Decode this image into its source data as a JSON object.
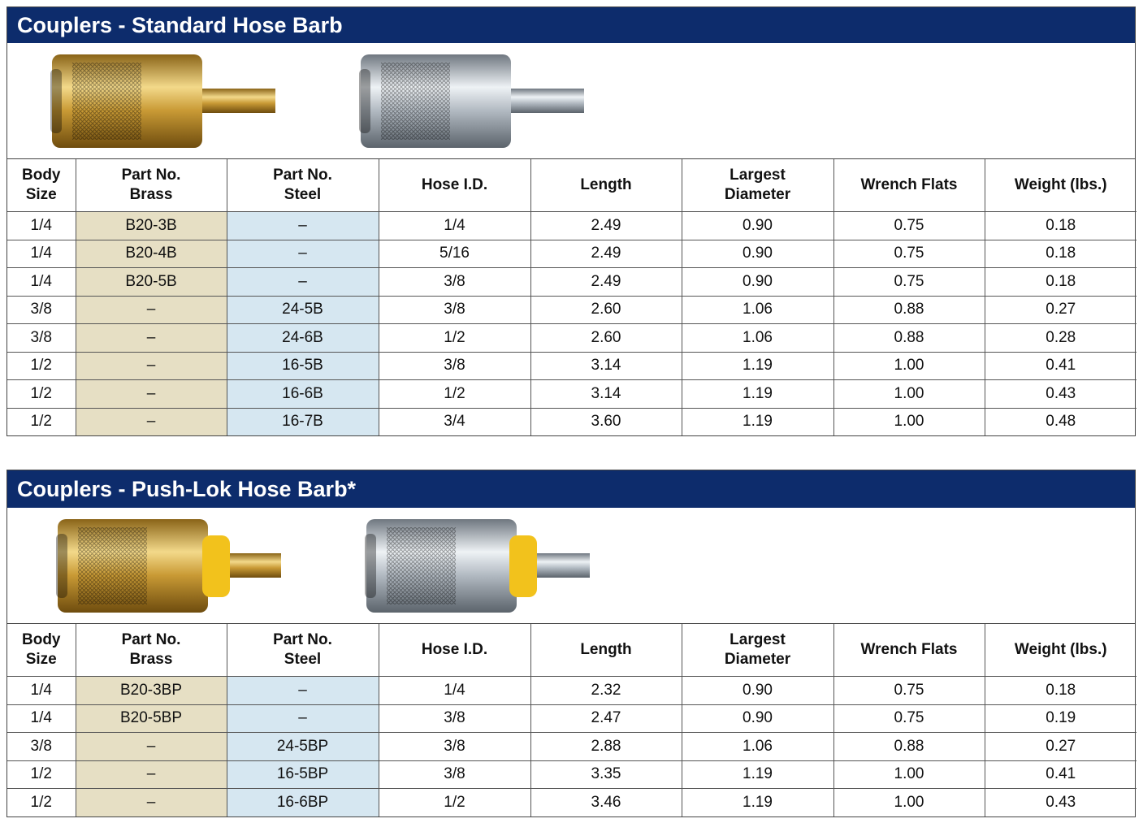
{
  "sections": [
    {
      "title": "Couplers - Standard Hose Barb",
      "table": {
        "headers": [
          [
            "Body",
            "Size"
          ],
          [
            "Part No.",
            "Brass"
          ],
          [
            "Part No.",
            "Steel"
          ],
          [
            "Hose I.D."
          ],
          [
            "Length"
          ],
          [
            "Largest",
            "Diameter"
          ],
          [
            "Wrench Flats"
          ],
          [
            "Weight (lbs.)"
          ]
        ],
        "rows": [
          [
            "1/4",
            "B20-3B",
            "–",
            "1/4",
            "2.49",
            "0.90",
            "0.75",
            "0.18"
          ],
          [
            "1/4",
            "B20-4B",
            "–",
            "5/16",
            "2.49",
            "0.90",
            "0.75",
            "0.18"
          ],
          [
            "1/4",
            "B20-5B",
            "–",
            "3/8",
            "2.49",
            "0.90",
            "0.75",
            "0.18"
          ],
          [
            "3/8",
            "–",
            "24-5B",
            "3/8",
            "2.60",
            "1.06",
            "0.88",
            "0.27"
          ],
          [
            "3/8",
            "–",
            "24-6B",
            "1/2",
            "2.60",
            "1.06",
            "0.88",
            "0.28"
          ],
          [
            "1/2",
            "–",
            "16-5B",
            "3/8",
            "3.14",
            "1.19",
            "1.00",
            "0.41"
          ],
          [
            "1/2",
            "–",
            "16-6B",
            "1/2",
            "3.14",
            "1.19",
            "1.00",
            "0.43"
          ],
          [
            "1/2",
            "–",
            "16-7B",
            "3/4",
            "3.60",
            "1.19",
            "1.00",
            "0.48"
          ]
        ]
      }
    },
    {
      "title": "Couplers - Push-Lok Hose Barb*",
      "table": {
        "headers": [
          [
            "Body",
            "Size"
          ],
          [
            "Part No.",
            "Brass"
          ],
          [
            "Part No.",
            "Steel"
          ],
          [
            "Hose I.D."
          ],
          [
            "Length"
          ],
          [
            "Largest",
            "Diameter"
          ],
          [
            "Wrench Flats"
          ],
          [
            "Weight (lbs.)"
          ]
        ],
        "rows": [
          [
            "1/4",
            "B20-3BP",
            "–",
            "1/4",
            "2.32",
            "0.90",
            "0.75",
            "0.18"
          ],
          [
            "1/4",
            "B20-5BP",
            "–",
            "3/8",
            "2.47",
            "0.90",
            "0.75",
            "0.19"
          ],
          [
            "3/8",
            "–",
            "24-5BP",
            "3/8",
            "2.88",
            "1.06",
            "0.88",
            "0.27"
          ],
          [
            "1/2",
            "–",
            "16-5BP",
            "3/8",
            "3.35",
            "1.19",
            "1.00",
            "0.41"
          ],
          [
            "1/2",
            "–",
            "16-6BP",
            "1/2",
            "3.46",
            "1.19",
            "1.00",
            "0.43"
          ]
        ]
      }
    }
  ]
}
